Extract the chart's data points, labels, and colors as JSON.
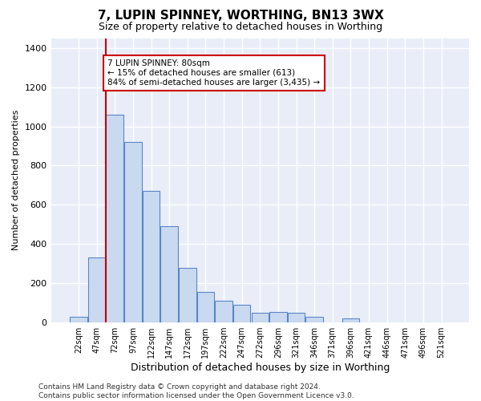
{
  "title": "7, LUPIN SPINNEY, WORTHING, BN13 3WX",
  "subtitle": "Size of property relative to detached houses in Worthing",
  "xlabel": "Distribution of detached houses by size in Worthing",
  "ylabel": "Number of detached properties",
  "categories": [
    "22sqm",
    "47sqm",
    "72sqm",
    "97sqm",
    "122sqm",
    "147sqm",
    "172sqm",
    "197sqm",
    "222sqm",
    "247sqm",
    "272sqm",
    "296sqm",
    "321sqm",
    "346sqm",
    "371sqm",
    "396sqm",
    "421sqm",
    "446sqm",
    "471sqm",
    "496sqm",
    "521sqm"
  ],
  "values": [
    30,
    330,
    1060,
    920,
    670,
    490,
    280,
    155,
    110,
    90,
    50,
    55,
    50,
    30,
    0,
    20,
    0,
    0,
    0,
    0,
    0
  ],
  "bar_color": "#c9d9f0",
  "bar_edge_color": "#5a87c5",
  "bar_edge_width": 0.8,
  "vline_x": 1.5,
  "vline_color": "#cc0000",
  "annotation_text": "7 LUPIN SPINNEY: 80sqm\n← 15% of detached houses are smaller (613)\n84% of semi-detached houses are larger (3,435) →",
  "annotation_box_color": "#cc0000",
  "ylim": [
    0,
    1450
  ],
  "yticks": [
    0,
    200,
    400,
    600,
    800,
    1000,
    1200,
    1400
  ],
  "background_color": "#e8edf8",
  "grid_color": "#ffffff",
  "footer": "Contains HM Land Registry data © Crown copyright and database right 2024.\nContains public sector information licensed under the Open Government Licence v3.0.",
  "title_fontsize": 11,
  "subtitle_fontsize": 9,
  "xlabel_fontsize": 9,
  "ylabel_fontsize": 8,
  "annotation_fontsize": 7.5,
  "tick_fontsize": 7,
  "ytick_fontsize": 8
}
